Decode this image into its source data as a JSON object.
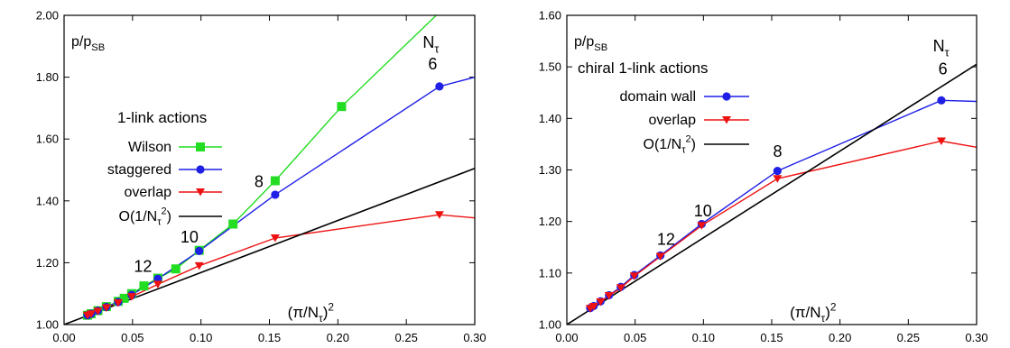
{
  "chart_data": [
    {
      "type": "line",
      "ylabel_text": "p/p",
      "ylabel_sub": "SB",
      "xlabel_base": "(π/N",
      "xlabel_sub": "τ",
      "xlabel_close": ")",
      "xlabel_sup": "2",
      "xlim": [
        0.0,
        0.3
      ],
      "ylim": [
        1.0,
        2.0
      ],
      "xticks": [
        0.0,
        0.05,
        0.1,
        0.15,
        0.2,
        0.25,
        0.3
      ],
      "xtick_labels": [
        "0.00",
        "0.05",
        "0.10",
        "0.15",
        "0.20",
        "0.25",
        "0.30"
      ],
      "yticks": [
        1.0,
        1.2,
        1.4,
        1.6,
        1.8,
        2.0
      ],
      "ytick_labels": [
        "1.00",
        "1.20",
        "1.40",
        "1.60",
        "1.80",
        "2.00"
      ],
      "legend": {
        "title": "1-link actions",
        "placement": "upper-left",
        "entries": [
          "Wilson",
          "staggered",
          "overlap",
          "O(1/N_τ^2)"
        ]
      },
      "series": [
        {
          "name": "Wilson",
          "color": "#22dd22",
          "marker": "square",
          "x": [
            0.0171,
            0.0197,
            0.0247,
            0.0309,
            0.0395,
            0.0439,
            0.0494,
            0.0583,
            0.0685,
            0.0816,
            0.0987,
            0.1234,
            0.1542,
            0.2027,
            0.3
          ],
          "y": [
            1.03,
            1.035,
            1.045,
            1.058,
            1.075,
            1.085,
            1.1,
            1.125,
            1.15,
            1.18,
            1.24,
            1.325,
            1.465,
            1.705,
            2.12
          ],
          "markers_x": [
            0.0171,
            0.0197,
            0.0247,
            0.0309,
            0.0395,
            0.0439,
            0.0494,
            0.0583,
            0.0685,
            0.0816,
            0.0987,
            0.1234,
            0.1542,
            0.2027
          ],
          "markers_y": [
            1.03,
            1.035,
            1.045,
            1.058,
            1.075,
            1.085,
            1.1,
            1.125,
            1.15,
            1.18,
            1.24,
            1.325,
            1.465,
            1.705
          ]
        },
        {
          "name": "staggered",
          "color": "#1f1fe6",
          "marker": "circle",
          "x": [
            0.0171,
            0.0197,
            0.0247,
            0.0309,
            0.0395,
            0.0494,
            0.0685,
            0.0987,
            0.1542,
            0.2742,
            0.3
          ],
          "y": [
            1.03,
            1.035,
            1.045,
            1.057,
            1.073,
            1.096,
            1.148,
            1.238,
            1.42,
            1.77,
            1.8
          ],
          "markers_x": [
            0.0171,
            0.0197,
            0.0247,
            0.0309,
            0.0395,
            0.0494,
            0.0685,
            0.0987,
            0.1542,
            0.2742
          ],
          "markers_y": [
            1.03,
            1.035,
            1.045,
            1.057,
            1.073,
            1.096,
            1.148,
            1.238,
            1.42,
            1.77
          ]
        },
        {
          "name": "overlap",
          "color": "#ee1111",
          "marker": "triangle-down",
          "x": [
            0.0171,
            0.0197,
            0.0247,
            0.0309,
            0.0395,
            0.0494,
            0.0685,
            0.0987,
            0.1542,
            0.2742,
            0.3
          ],
          "y": [
            1.03,
            1.034,
            1.043,
            1.054,
            1.07,
            1.09,
            1.13,
            1.19,
            1.28,
            1.355,
            1.345
          ],
          "markers_x": [
            0.0171,
            0.0197,
            0.0247,
            0.0309,
            0.0395,
            0.0494,
            0.0685,
            0.0987,
            0.1542,
            0.2742
          ],
          "markers_y": [
            1.03,
            1.034,
            1.043,
            1.054,
            1.07,
            1.09,
            1.13,
            1.19,
            1.28,
            1.355
          ]
        },
        {
          "name": "O(1/N_τ^2)",
          "color": "#000000",
          "marker": "none",
          "x": [
            0.0,
            0.3
          ],
          "y": [
            1.0,
            1.505
          ]
        }
      ],
      "annotations": [
        {
          "text": "N",
          "sub": "τ",
          "x": 0.262,
          "y": 1.895
        },
        {
          "text": "6",
          "x": 0.266,
          "y": 1.825
        },
        {
          "text": "8",
          "x": 0.139,
          "y": 1.445
        },
        {
          "text": "10",
          "x": 0.085,
          "y": 1.265
        },
        {
          "text": "12",
          "x": 0.051,
          "y": 1.17
        }
      ]
    },
    {
      "type": "line",
      "ylabel_text": "p/p",
      "ylabel_sub": "SB",
      "xlabel_base": "(π/N",
      "xlabel_sub": "τ",
      "xlabel_close": ")",
      "xlabel_sup": "2",
      "xlim": [
        0.0,
        0.3
      ],
      "ylim": [
        1.0,
        1.6
      ],
      "xticks": [
        0.0,
        0.05,
        0.1,
        0.15,
        0.2,
        0.25,
        0.3
      ],
      "xtick_labels": [
        "0.00",
        "0.05",
        "0.10",
        "0.15",
        "0.20",
        "0.25",
        "0.30"
      ],
      "yticks": [
        1.0,
        1.1,
        1.2,
        1.3,
        1.4,
        1.5,
        1.6
      ],
      "ytick_labels": [
        "1.00",
        "1.10",
        "1.20",
        "1.30",
        "1.40",
        "1.50",
        "1.60"
      ],
      "legend": {
        "title": "chiral 1-link actions",
        "placement": "upper-left",
        "entries": [
          "domain wall",
          "overlap",
          "O(1/N_τ^2)"
        ]
      },
      "series": [
        {
          "name": "domain wall",
          "color": "#1f1fe6",
          "marker": "circle",
          "x": [
            0.0171,
            0.0197,
            0.0247,
            0.0309,
            0.0395,
            0.0494,
            0.0685,
            0.0987,
            0.1542,
            0.2742,
            0.3
          ],
          "y": [
            1.032,
            1.036,
            1.045,
            1.057,
            1.073,
            1.096,
            1.134,
            1.195,
            1.298,
            1.435,
            1.433
          ],
          "markers_x": [
            0.0171,
            0.0197,
            0.0247,
            0.0309,
            0.0395,
            0.0494,
            0.0685,
            0.0987,
            0.1542,
            0.2742
          ],
          "markers_y": [
            1.032,
            1.036,
            1.045,
            1.057,
            1.073,
            1.096,
            1.134,
            1.195,
            1.298,
            1.435
          ]
        },
        {
          "name": "overlap",
          "color": "#ee1111",
          "marker": "triangle-down",
          "x": [
            0.0171,
            0.0197,
            0.0247,
            0.0309,
            0.0395,
            0.0494,
            0.0685,
            0.0987,
            0.1542,
            0.2742,
            0.3
          ],
          "y": [
            1.031,
            1.035,
            1.044,
            1.056,
            1.071,
            1.094,
            1.132,
            1.192,
            1.283,
            1.356,
            1.344
          ],
          "markers_x": [
            0.0171,
            0.0197,
            0.0247,
            0.0309,
            0.0395,
            0.0494,
            0.0685,
            0.0987,
            0.1542,
            0.2742
          ],
          "markers_y": [
            1.031,
            1.035,
            1.044,
            1.056,
            1.071,
            1.094,
            1.132,
            1.192,
            1.283,
            1.356
          ]
        },
        {
          "name": "O(1/N_τ^2)",
          "color": "#000000",
          "marker": "none",
          "x": [
            0.0,
            0.3
          ],
          "y": [
            1.0,
            1.505
          ]
        }
      ],
      "annotations": [
        {
          "text": "N",
          "sub": "τ",
          "x": 0.268,
          "y": 1.53
        },
        {
          "text": "6",
          "x": 0.272,
          "y": 1.485
        },
        {
          "text": "8",
          "x": 0.151,
          "y": 1.325
        },
        {
          "text": "10",
          "x": 0.093,
          "y": 1.21
        },
        {
          "text": "12",
          "x": 0.066,
          "y": 1.155
        }
      ]
    }
  ]
}
